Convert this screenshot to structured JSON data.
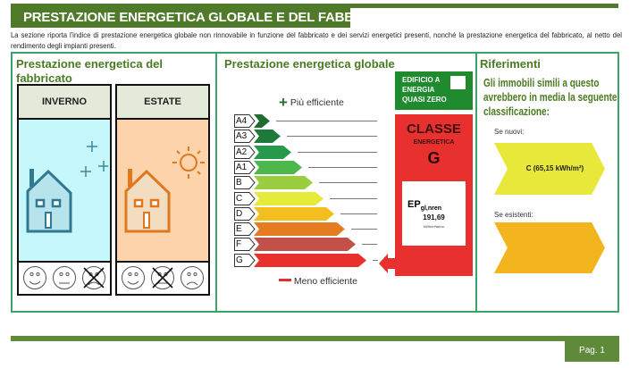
{
  "header": {
    "title": "PRESTAZIONE ENERGETICA GLOBALE E DEL FABBRICATO",
    "description": "La sezione riporta l'indice di prestazione energetica globale non rinnovabile in funzione del fabbricato e dei servizi energetici presenti, nonché la prestazione energetica del fabbricato, al netto del rendimento degli impianti presenti."
  },
  "fabbricato": {
    "title": "Prestazione energetica del fabbricato",
    "seasons": [
      {
        "label": "INVERNO",
        "background": "#c6f7fb",
        "icon": "house-snow-icon",
        "faces": [
          "happy",
          "neutral",
          "sad"
        ],
        "marked_face": "sad"
      },
      {
        "label": "ESTATE",
        "background": "#fdd3ac",
        "icon": "house-sun-icon",
        "faces": [
          "happy",
          "neutral",
          "sad"
        ],
        "marked_face": "neutral"
      }
    ]
  },
  "globale": {
    "title": "Prestazione energetica globale",
    "more_efficient": "Più efficiente",
    "less_efficient": "Meno efficiente",
    "classes": [
      {
        "label": "A4",
        "color": "#1f6b30"
      },
      {
        "label": "A3",
        "color": "#1e7a3a"
      },
      {
        "label": "A2",
        "color": "#26994a"
      },
      {
        "label": "A1",
        "color": "#4cb84c"
      },
      {
        "label": "B",
        "color": "#9acd3f"
      },
      {
        "label": "C",
        "color": "#e6ea3a"
      },
      {
        "label": "D",
        "color": "#f2bf1e"
      },
      {
        "label": "E",
        "color": "#e57c21"
      },
      {
        "label": "F",
        "color": "#c2514a"
      },
      {
        "label": "G",
        "color": "#e8302e"
      }
    ],
    "nzeb_label": "EDIFICIO A ENERGIA QUASI ZERO",
    "nzeb_checked": false,
    "class_title": "CLASSE",
    "class_subtitle": "ENERGETICA",
    "class_value": "G",
    "ep_label": "EP",
    "ep_sub": "gl,nren",
    "ep_value": "191,69",
    "ep_unit": "kWh/m²anno"
  },
  "riferimenti": {
    "title": "Riferimenti",
    "text": "Gli immobili simili a questo avrebbero in media la seguente classificazione:",
    "new_label": "Se nuovi:",
    "new_value": "C (65,15 kWh/m²)",
    "new_color": "#e8e83a",
    "existing_label": "Se esistenti:",
    "existing_value": "",
    "existing_color": "#f2b51e"
  },
  "footer": {
    "page": "Pag. 1"
  }
}
